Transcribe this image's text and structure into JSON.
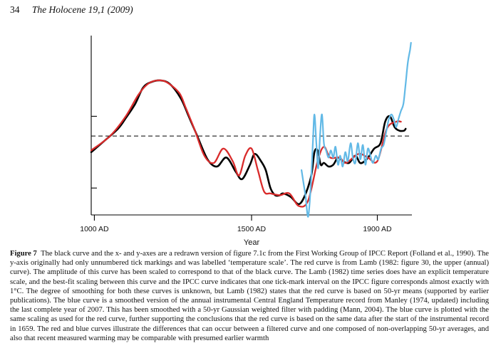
{
  "header": {
    "page_number": "34",
    "journal": "The Holocene 19,1 (2009)"
  },
  "chart_data": {
    "type": "line",
    "title": "",
    "xlabel": "Year",
    "ylabel": "",
    "xlim": [
      990,
      2010
    ],
    "ylim": [
      0,
      100
    ],
    "x_ticks": [
      1000,
      1500,
      1900
    ],
    "x_tick_labels": [
      "1000 AD",
      "1500 AD",
      "1900 AD"
    ],
    "y_ticks": [
      15,
      55
    ],
    "y_tick_labels_visible": false,
    "reference_line": {
      "style": "dashed",
      "y": 44
    },
    "grid": false,
    "legend": "none",
    "series": [
      {
        "color": "#000000",
        "x": [
          990,
          1030,
          1075,
          1100,
          1130,
          1155,
          1180,
          1210,
          1240,
          1275,
          1300,
          1325,
          1360,
          1390,
          1420,
          1450,
          1470,
          1495,
          1510,
          1530,
          1545,
          1560,
          1575,
          1590,
          1600,
          1625,
          1650,
          1670,
          1690,
          1700,
          1710,
          1720,
          1730,
          1745,
          1760,
          1775,
          1790,
          1810,
          1830,
          1845,
          1860,
          1875,
          1890,
          1910,
          1925,
          1940,
          1955,
          1970,
          1985,
          1990
        ],
        "y": [
          35,
          41,
          48,
          54,
          62,
          71,
          74,
          75,
          73,
          65,
          55,
          45,
          31,
          27,
          32,
          24,
          20,
          28,
          34,
          30,
          25,
          15,
          11,
          11,
          12,
          10,
          6,
          11,
          22,
          35,
          36,
          28,
          29,
          27,
          28,
          32,
          30,
          29,
          33,
          29,
          30,
          33,
          37,
          40,
          52,
          55,
          49,
          47,
          47,
          48
        ]
      },
      {
        "color": "#d92b2b",
        "x": [
          990,
          1050,
          1100,
          1140,
          1170,
          1200,
          1230,
          1270,
          1290,
          1320,
          1350,
          1380,
          1410,
          1440,
          1460,
          1480,
          1500,
          1520,
          1540,
          1560,
          1590,
          1620,
          1650,
          1680,
          1710,
          1730,
          1750,
          1780,
          1800,
          1840,
          1870,
          1900,
          1930,
          1960,
          1975
        ],
        "y": [
          36,
          44,
          55,
          67,
          73,
          75,
          74,
          68,
          60,
          47,
          33,
          29,
          37,
          30,
          22,
          33,
          37,
          25,
          13,
          12,
          11,
          12,
          5,
          8,
          30,
          38,
          32,
          32,
          29,
          34,
          32,
          30,
          48,
          52,
          52
        ]
      },
      {
        "color": "#62b9e6",
        "x": [
          1659,
          1665,
          1672,
          1680,
          1688,
          1695,
          1700,
          1706,
          1712,
          1718,
          1724,
          1730,
          1737,
          1745,
          1752,
          1760,
          1767,
          1775,
          1782,
          1790,
          1798,
          1806,
          1815,
          1822,
          1830,
          1838,
          1846,
          1854,
          1862,
          1870,
          1878,
          1886,
          1895,
          1903,
          1912,
          1920,
          1928,
          1936,
          1945,
          1953,
          1960,
          1968,
          1975,
          1983,
          1990,
          1997,
          2004,
          2007
        ],
        "y": [
          25,
          18,
          10,
          -1,
          15,
          40,
          56,
          40,
          26,
          45,
          56,
          40,
          36,
          32,
          36,
          32,
          38,
          28,
          33,
          27,
          35,
          30,
          40,
          32,
          29,
          40,
          31,
          39,
          28,
          37,
          33,
          29,
          33,
          31,
          37,
          39,
          46,
          53,
          56,
          53,
          49,
          54,
          58,
          62,
          73,
          85,
          92,
          96
        ]
      }
    ]
  },
  "caption": {
    "label": "Figure 7",
    "text": "The black curve and the x- and y-axes are a redrawn version of figure 7.1c from the First Working Group of IPCC Report (Folland et al., 1990). The y-axis originally had only unnumbered tick markings and was labelled ‘temperature scale’. The red curve is from Lamb (1982: figure 30, the upper (annual) curve). The amplitude of this curve has been scaled to correspond to that of the black curve. The Lamb (1982) time series does have an explicit temperature scale, and the best-fit scaling between this curve and the IPCC curve indicates that one tick-mark interval on the IPCC figure corresponds almost exactly with 1°C. The degree of smoothing for both these curves is unknown, but Lamb (1982) states that the red curve is based on 50-yr means (supported by earlier publications). The blue curve is a smoothed version of the annual instrumental Central England Temperature record from Manley (1974, updated) including the last complete year of 2007. This has been smoothed with a 50-yr Gaussian weighted filter with padding (Mann, 2004). The blue curve is plotted with the same scaling as used for the red curve, further supporting the conclusions that the red curve is based on the same data after the start of the instrumental record in 1659. The red and blue curves illustrate the differences that can occur between a filtered curve and one composed of non-overlapping 50-yr averages, and also that recent measured warming may be comparable with presumed earlier warmth"
  }
}
